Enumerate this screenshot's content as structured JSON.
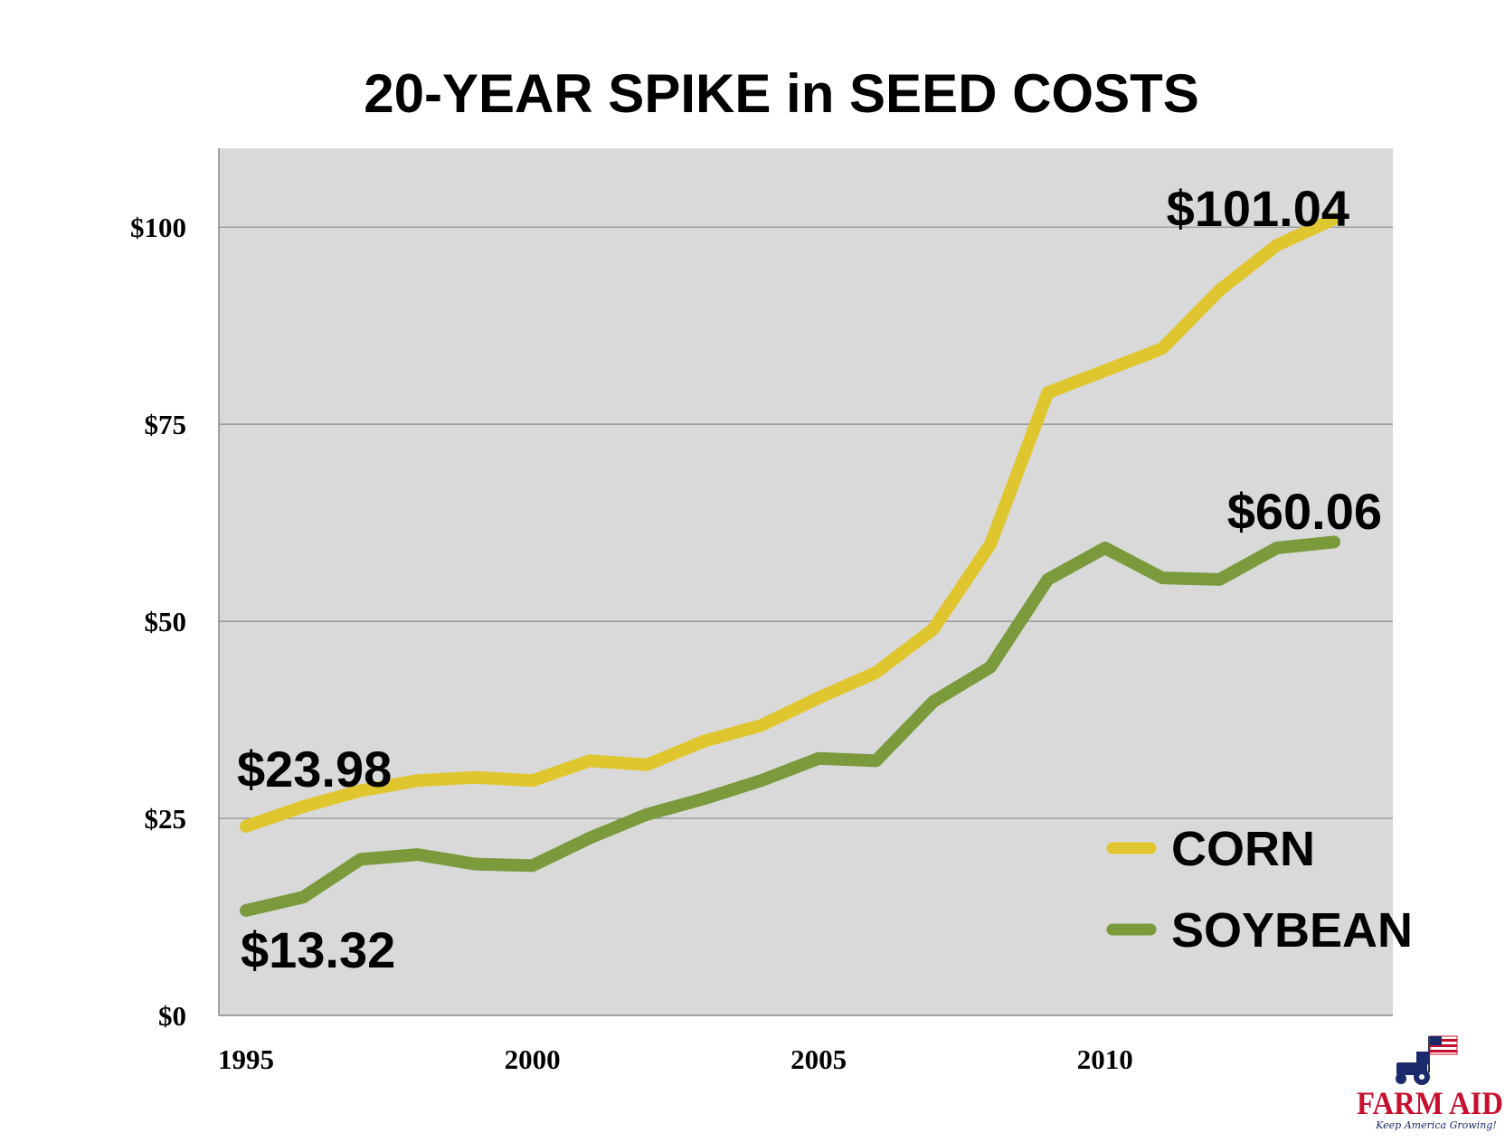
{
  "chart_data": {
    "type": "line",
    "title": "20-YEAR SPIKE in SEED COSTS",
    "x": [
      1995,
      1996,
      1997,
      1998,
      1999,
      2000,
      2001,
      2002,
      2003,
      2004,
      2005,
      2006,
      2007,
      2008,
      2009,
      2010,
      2011,
      2012,
      2013,
      2014
    ],
    "x_ticks": [
      "1995",
      "2000",
      "2005",
      "2010"
    ],
    "xlim": [
      1995,
      2014
    ],
    "ylim": [
      0,
      110
    ],
    "y_ticks": [
      "$0",
      "$25",
      "$50",
      "$75",
      "$100"
    ],
    "grid": "horizontal",
    "legend": "bottom-right",
    "series": [
      {
        "name": "CORN",
        "color": "#e0c62e",
        "values": [
          23.98,
          26.5,
          28.5,
          29.8,
          30.2,
          29.8,
          32.3,
          31.8,
          34.8,
          36.8,
          40.3,
          43.5,
          49.0,
          59.8,
          79.0,
          81.8,
          84.6,
          92.0,
          97.7,
          101.04
        ]
      },
      {
        "name": "SOYBEAN",
        "color": "#7b9a3c",
        "values": [
          13.32,
          15.0,
          19.8,
          20.4,
          19.2,
          19.0,
          22.5,
          25.5,
          27.5,
          29.8,
          32.6,
          32.3,
          39.8,
          44.2,
          55.3,
          59.3,
          55.5,
          55.3,
          59.3,
          60.06
        ]
      }
    ],
    "annotations": [
      {
        "text": "$23.98",
        "series": "CORN",
        "x": 1995
      },
      {
        "text": "$13.32",
        "series": "SOYBEAN",
        "x": 1995
      },
      {
        "text": "$101.04",
        "series": "CORN",
        "x": 2014
      },
      {
        "text": "$60.06",
        "series": "SOYBEAN",
        "x": 2014
      }
    ]
  },
  "logo": {
    "name": "FARM AID",
    "tagline": "Keep America Growing!"
  }
}
